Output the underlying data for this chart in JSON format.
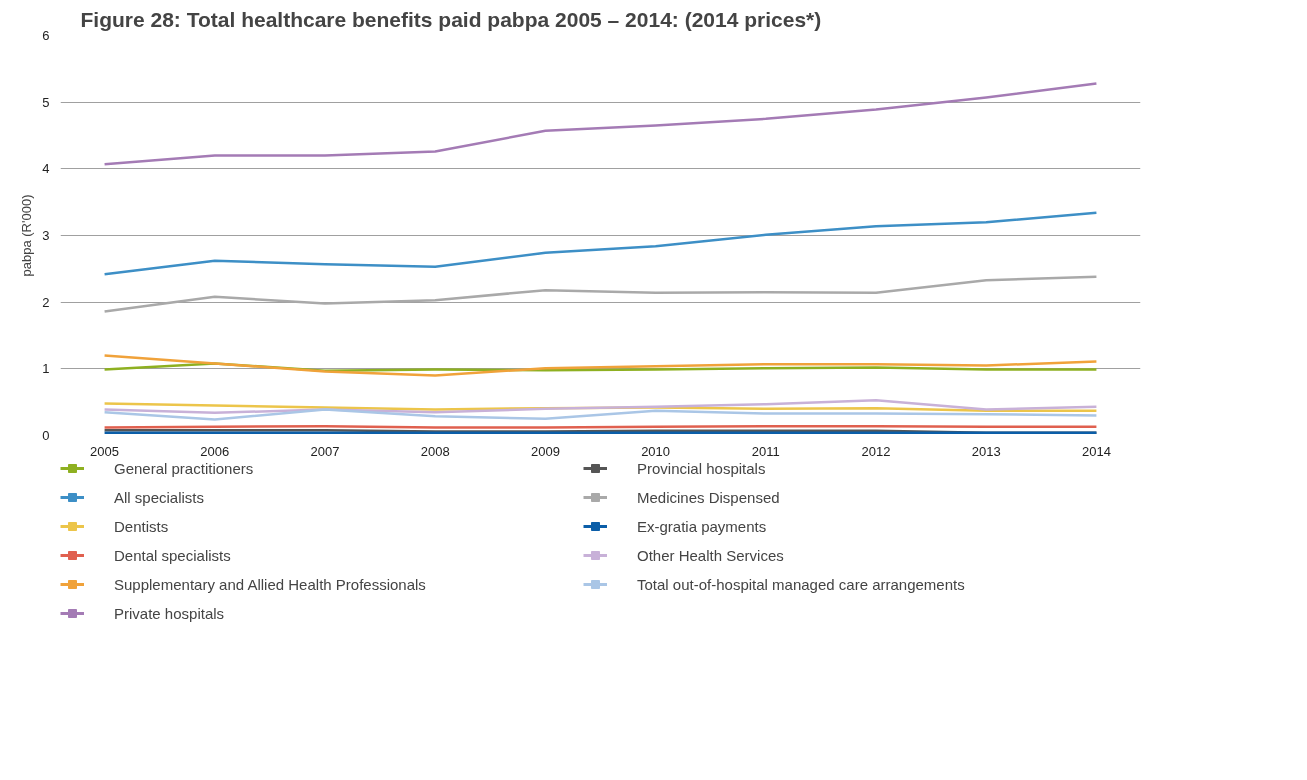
{
  "chart_data": {
    "type": "line",
    "title": "Figure 28: Total healthcare benefits paid pabpa 2005 – 2014: (2014 prices*)",
    "ylabel": "pabpa (R'000)",
    "x": [
      2005,
      2006,
      2007,
      2008,
      2009,
      2010,
      2011,
      2012,
      2013,
      2014
    ],
    "xlim": [
      2004.6,
      2014.4
    ],
    "xticks": [
      2005,
      2006,
      2007,
      2008,
      2009,
      2010,
      2011,
      2012,
      2013,
      2014
    ],
    "ylim": [
      0,
      6
    ],
    "yticks": [
      0,
      1,
      2,
      3,
      4,
      5,
      6
    ],
    "grid": "y",
    "legend": "bottom",
    "series": [
      {
        "name": "General practitioners",
        "color": "#8eb021",
        "values": [
          0.99,
          1.08,
          0.97,
          0.99,
          0.98,
          0.99,
          1.01,
          1.02,
          0.99,
          0.99
        ]
      },
      {
        "name": "All specialists",
        "color": "#3d8fc6",
        "values": [
          2.42,
          2.62,
          2.57,
          2.53,
          2.74,
          2.84,
          3.01,
          3.14,
          3.2,
          3.34
        ]
      },
      {
        "name": "Dentists",
        "color": "#ecc54a",
        "values": [
          0.48,
          0.45,
          0.42,
          0.39,
          0.41,
          0.42,
          0.4,
          0.41,
          0.37,
          0.37
        ]
      },
      {
        "name": "Dental specialists",
        "color": "#e0604f",
        "values": [
          0.12,
          0.13,
          0.14,
          0.12,
          0.12,
          0.13,
          0.14,
          0.14,
          0.13,
          0.13
        ]
      },
      {
        "name": "Supplementary and Allied Health Professionals",
        "color": "#f0a23a",
        "values": [
          1.2,
          1.08,
          0.96,
          0.9,
          1.01,
          1.04,
          1.07,
          1.07,
          1.05,
          1.11
        ]
      },
      {
        "name": "Private hospitals",
        "color": "#a47bb5",
        "values": [
          4.07,
          4.2,
          4.2,
          4.26,
          4.57,
          4.65,
          4.75,
          4.89,
          5.07,
          5.28
        ]
      },
      {
        "name": "Provincial hospitals",
        "color": "#555555",
        "values": [
          0.08,
          0.08,
          0.08,
          0.06,
          0.06,
          0.07,
          0.07,
          0.07,
          0.04,
          0.04
        ]
      },
      {
        "name": "Medicines Dispensed",
        "color": "#a9a9a9",
        "values": [
          1.86,
          2.08,
          1.98,
          2.03,
          2.18,
          2.14,
          2.15,
          2.14,
          2.33,
          2.38
        ]
      },
      {
        "name": "Ex-gratia payments",
        "color": "#0b5ea8",
        "values": [
          0.04,
          0.04,
          0.04,
          0.04,
          0.04,
          0.04,
          0.04,
          0.04,
          0.04,
          0.04
        ]
      },
      {
        "name": "Other Health Services",
        "color": "#c8b1d8",
        "values": [
          0.39,
          0.34,
          0.39,
          0.35,
          0.4,
          0.43,
          0.47,
          0.53,
          0.39,
          0.43
        ]
      },
      {
        "name": "Total out-of-hospital managed care arrangements",
        "color": "#aac6e6",
        "values": [
          0.35,
          0.24,
          0.39,
          0.29,
          0.25,
          0.37,
          0.33,
          0.33,
          0.32,
          0.3
        ]
      }
    ]
  }
}
